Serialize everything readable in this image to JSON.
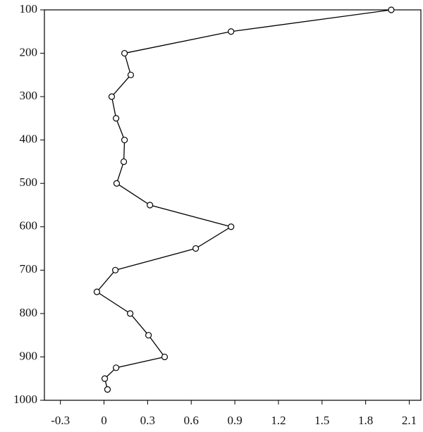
{
  "chart_data": {
    "type": "line",
    "x": [
      1.976,
      0.874,
      0.141,
      0.184,
      0.053,
      0.083,
      0.141,
      0.136,
      0.087,
      0.316,
      0.874,
      0.631,
      0.078,
      -0.049,
      0.18,
      0.306,
      0.417,
      0.083,
      0.005,
      0.024
    ],
    "values": [
      100,
      150,
      200,
      250,
      300,
      350,
      400,
      450,
      500,
      550,
      600,
      650,
      700,
      750,
      800,
      850,
      900,
      925,
      950,
      975
    ],
    "color": "#000000",
    "xlim": [
      -0.41,
      2.18
    ],
    "xticks": [
      -0.3,
      0,
      0.3,
      0.6,
      0.9,
      1.2,
      1.5,
      1.8,
      2.1
    ],
    "ylim": [
      100,
      1000
    ],
    "y_inverted": true,
    "yticks": [
      100,
      200,
      300,
      400,
      500,
      600,
      700,
      800,
      900,
      1000
    ]
  }
}
